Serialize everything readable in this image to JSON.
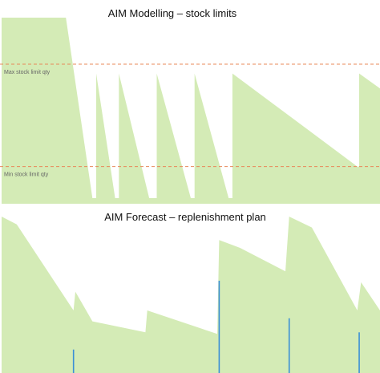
{
  "colors": {
    "area_fill": "#d4ebb6",
    "limit_line": "#e8885a",
    "order_bar": "#3a8fd6",
    "background": "#ffffff"
  },
  "chart_data": [
    {
      "type": "area",
      "title": "AIM Modelling – stock limits",
      "xlim": [
        0,
        100
      ],
      "ylim": [
        0,
        100
      ],
      "grid": false,
      "series": [
        {
          "points": [
            [
              0,
              100
            ],
            [
              17,
              100
            ],
            [
              24,
              3
            ],
            [
              25,
              3
            ],
            [
              25,
              70
            ],
            [
              30,
              3
            ],
            [
              31,
              3
            ],
            [
              31,
              70
            ],
            [
              39,
              3
            ],
            [
              41,
              3
            ],
            [
              41,
              70
            ],
            [
              50,
              3
            ],
            [
              51,
              3
            ],
            [
              51,
              70
            ],
            [
              60,
              3
            ],
            [
              61,
              3
            ],
            [
              61,
              70
            ],
            [
              94,
              20
            ],
            [
              94.5,
              20
            ],
            [
              94.5,
              70
            ],
            [
              100,
              62
            ]
          ]
        }
      ],
      "reference_lines": [
        {
          "label": "Max stock limit qty",
          "y": 75
        },
        {
          "label": "Min stock limit qty",
          "y": 20
        }
      ]
    },
    {
      "type": "area",
      "title": "AIM Forecast – replenishment plan",
      "xlim": [
        0,
        100
      ],
      "ylim": [
        0,
        100
      ],
      "grid": false,
      "series": [
        {
          "points": [
            [
              0,
              100
            ],
            [
              4,
              95
            ],
            [
              19,
              40
            ],
            [
              19.5,
              52
            ],
            [
              24,
              33
            ],
            [
              38,
              26
            ],
            [
              38.5,
              40
            ],
            [
              57,
              25
            ],
            [
              57.5,
              85
            ],
            [
              63,
              80
            ],
            [
              75,
              65
            ],
            [
              76,
              100
            ],
            [
              82,
              93
            ],
            [
              94,
              40
            ],
            [
              95,
              58
            ],
            [
              100,
              40
            ]
          ]
        }
      ],
      "order_bars": [
        {
          "x": 19,
          "value": 15
        },
        {
          "x": 57.5,
          "value": 59
        },
        {
          "x": 76,
          "value": 35
        },
        {
          "x": 94.5,
          "value": 26
        }
      ]
    }
  ]
}
